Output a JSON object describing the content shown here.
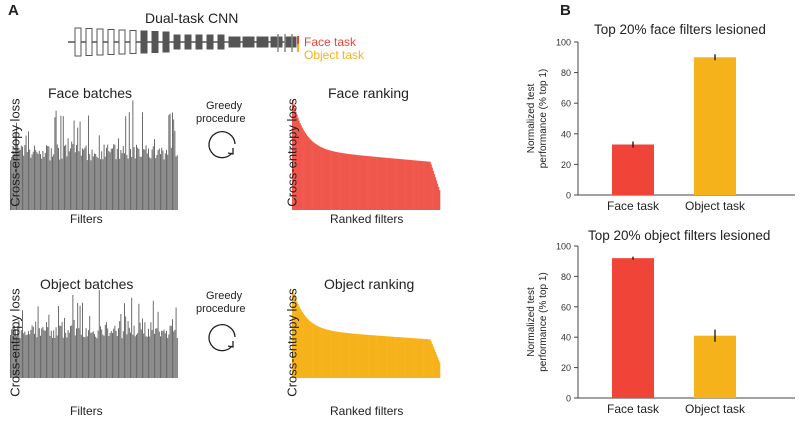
{
  "panel_a": {
    "label": "A",
    "network_title": "Dual-task CNN",
    "legend": [
      {
        "name": "Face task",
        "color": "#f04438"
      },
      {
        "name": "Object task",
        "color": "#f6b21a"
      }
    ],
    "greedy_label_1": "Greedy",
    "greedy_label_2": "procedure",
    "ylabel": "Cross-entropy loss",
    "face_batches": {
      "title": "Face batches",
      "xlabel": "Filters"
    },
    "face_ranking": {
      "title": "Face ranking",
      "xlabel": "Ranked filters"
    },
    "object_batches": {
      "title": "Object batches",
      "xlabel": "Filters"
    },
    "object_ranking": {
      "title": "Object ranking",
      "xlabel": "Ranked filters"
    }
  },
  "panel_b": {
    "label": "B"
  },
  "chart_data": [
    {
      "type": "bar",
      "title": "Top 20% face filters lesioned",
      "categories": [
        "Face task",
        "Object task"
      ],
      "values": [
        33,
        90
      ],
      "errors": [
        2,
        2
      ],
      "colors": [
        "#f04438",
        "#f6b21a"
      ],
      "ylabel": "Normalized test performance (% top 1)",
      "ylim": [
        0,
        100
      ],
      "yticks": [
        "0",
        "20",
        "40",
        "60",
        "80",
        "100"
      ]
    },
    {
      "type": "bar",
      "title": "Top 20% object filters lesioned",
      "categories": [
        "Face task",
        "Object task"
      ],
      "values": [
        92,
        41
      ],
      "errors": [
        1,
        4
      ],
      "colors": [
        "#f04438",
        "#f6b21a"
      ],
      "ylabel": "Normalized test performance (% top 1)",
      "ylim": [
        0,
        100
      ],
      "yticks": [
        "0",
        "20",
        "40",
        "60",
        "80",
        "100"
      ]
    }
  ]
}
